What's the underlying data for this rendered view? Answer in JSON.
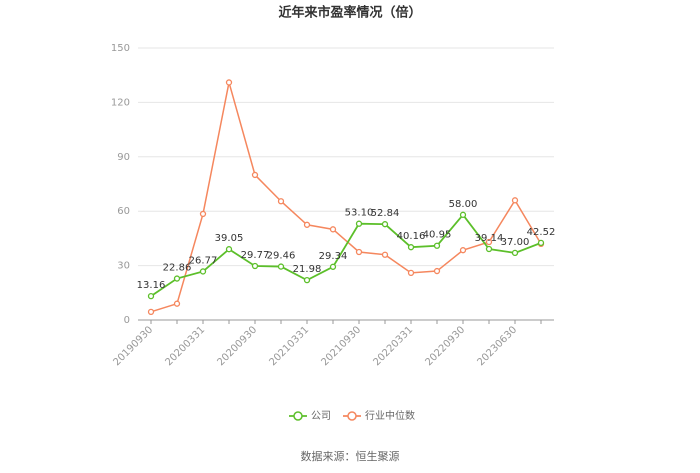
{
  "chart_data": {
    "type": "line",
    "title": "近年来市盈率情况（倍）",
    "categories": [
      "20190930",
      null,
      "20200331",
      null,
      "20200930",
      null,
      "20210331",
      null,
      "20210930",
      null,
      "20220331",
      null,
      "20220930",
      null,
      "20230630",
      null
    ],
    "series": [
      {
        "name": "公司",
        "color": "#5cbf2a",
        "values": [
          13.16,
          22.86,
          26.77,
          39.05,
          29.77,
          29.46,
          21.98,
          29.34,
          53.1,
          52.84,
          40.16,
          40.95,
          58.0,
          39.14,
          37.0,
          42.52
        ],
        "value_labels": [
          "13.16",
          "22.86",
          "26.77",
          "39.05",
          "29.77",
          "29.46",
          "21.98",
          "29.34",
          "53.10",
          "52.84",
          "40.16",
          "40.95",
          "58.00",
          "39.14",
          "37.00",
          "42.52"
        ]
      },
      {
        "name": "行业中位数",
        "color": "#f5875e",
        "values": [
          4.5,
          9,
          58.5,
          131,
          80,
          65.5,
          52.5,
          50,
          37.5,
          36,
          26,
          27,
          38.5,
          43,
          66,
          42
        ]
      }
    ],
    "ylim": [
      0,
      150
    ],
    "yticks": [
      0,
      30,
      60,
      90,
      120,
      150
    ],
    "grid": true,
    "source": "数据来源：恒生聚源"
  }
}
